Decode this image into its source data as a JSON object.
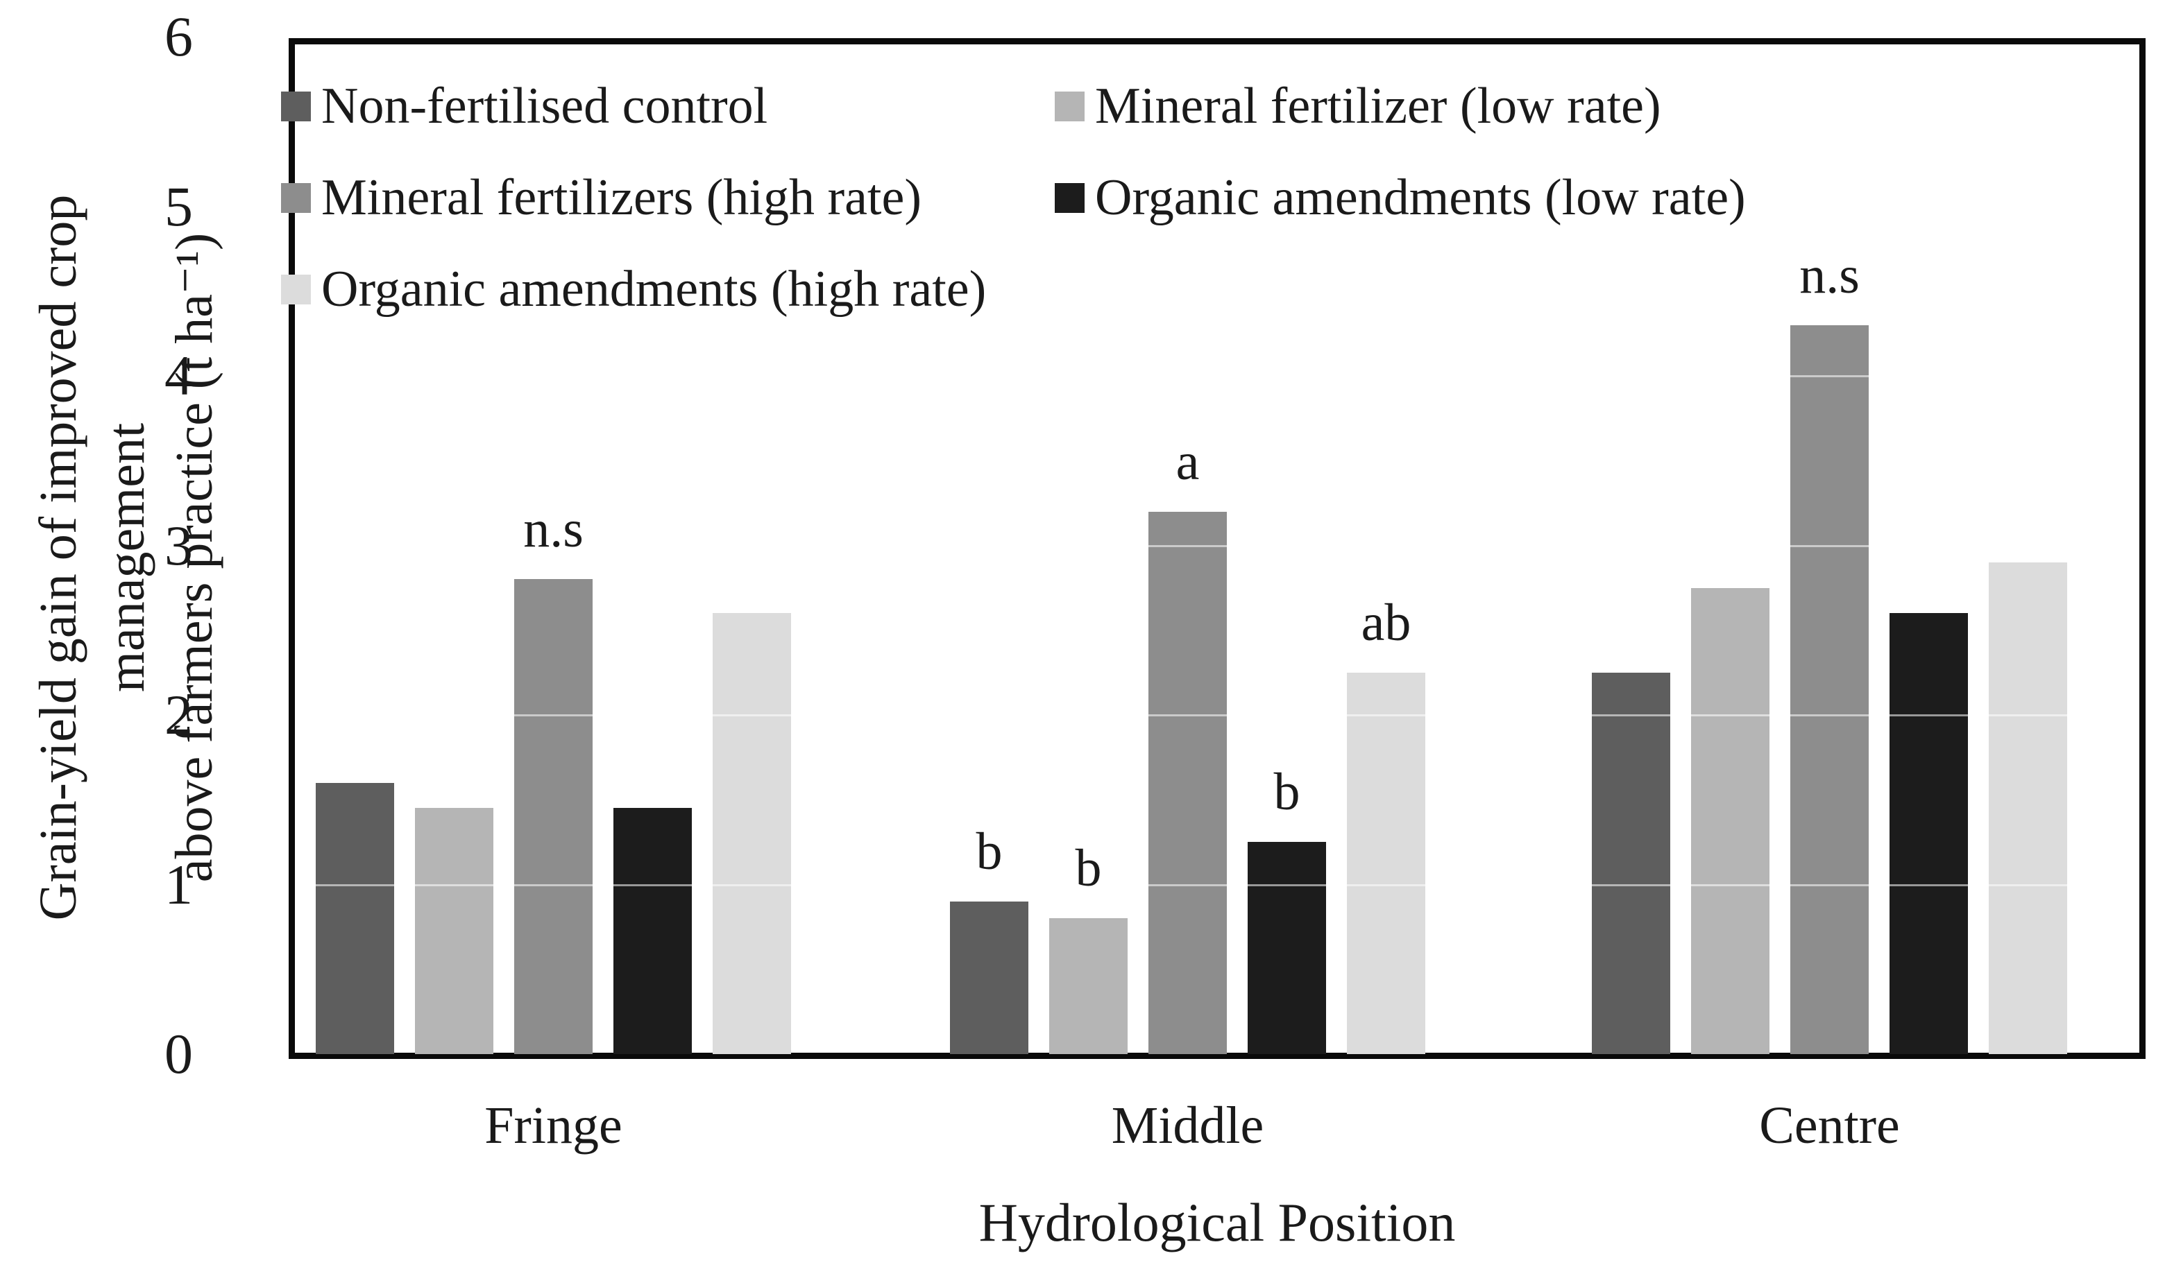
{
  "chart_data": {
    "type": "bar",
    "title": "",
    "xlabel": "Hydrological Position",
    "ylabel_line1": "Grain-yield gain of improved crop management",
    "ylabel_line2": "above farmers practice (t ha⁻¹)",
    "categories": [
      "Fringe",
      "Middle",
      "Centre"
    ],
    "series": [
      {
        "name": "Non-fertilised control",
        "color": "#5e5e5e",
        "values": [
          1.6,
          0.9,
          2.25
        ]
      },
      {
        "name": "Mineral fertilizer (low rate)",
        "color": "#b5b5b5",
        "values": [
          1.45,
          0.8,
          2.75
        ]
      },
      {
        "name": "Mineral fertilizers (high rate)",
        "color": "#8d8d8d",
        "values": [
          2.8,
          3.2,
          4.3
        ]
      },
      {
        "name": "Organic amendments (low rate)",
        "color": "#1c1c1c",
        "values": [
          1.45,
          1.25,
          2.6
        ]
      },
      {
        "name": "Organic amendments (high rate)",
        "color": "#dcdcdc",
        "values": [
          2.6,
          2.25,
          2.9
        ]
      }
    ],
    "ylim": [
      0,
      6
    ],
    "yticks": [
      0,
      1,
      2,
      3,
      4,
      5,
      6
    ],
    "grid": "horizontal-very-faint",
    "legend_position": "inside-top-left, two columns",
    "annotations": [
      {
        "category": "Fringe",
        "series": "Mineral fertilizers (high rate)",
        "text": "n.s"
      },
      {
        "category": "Middle",
        "series": "Non-fertilised control",
        "text": "b"
      },
      {
        "category": "Middle",
        "series": "Mineral fertilizer (low rate)",
        "text": "b"
      },
      {
        "category": "Middle",
        "series": "Mineral fertilizers (high rate)",
        "text": "a"
      },
      {
        "category": "Middle",
        "series": "Organic amendments (low rate)",
        "text": "b"
      },
      {
        "category": "Middle",
        "series": "Organic amendments (high rate)",
        "text": "ab"
      },
      {
        "category": "Centre",
        "series": "Mineral fertilizers (high rate)",
        "text": "n.s"
      }
    ]
  }
}
